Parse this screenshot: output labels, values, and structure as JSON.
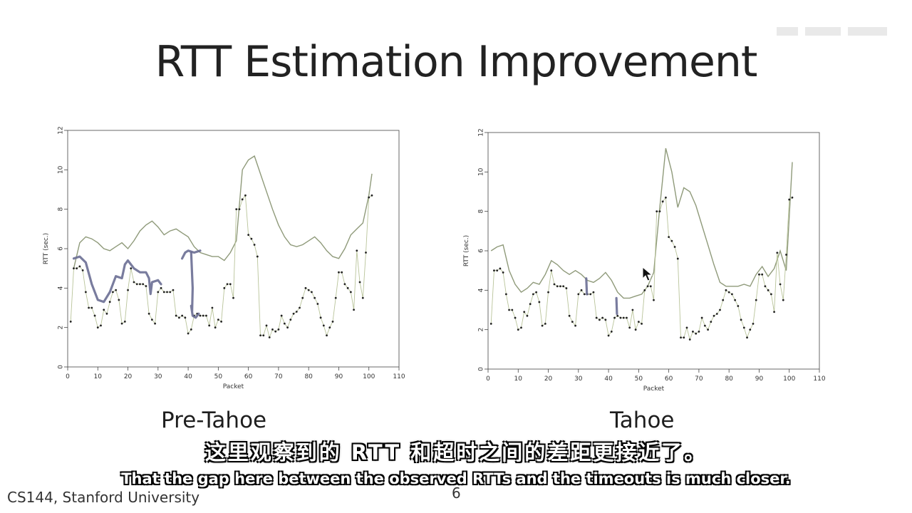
{
  "slide": {
    "title": "RTT Estimation Improvement",
    "footer": "CS144, Stanford University",
    "page_number": "6"
  },
  "subtitles": {
    "chinese": "这里观察到的 RTT 和超时之间的差距更接近了。",
    "english": "That the gap here between the observed RTTs and the timeouts is much closer."
  },
  "colors": {
    "timeout_line": "#8f9a7a",
    "rtt_line": "#b9c49a",
    "marker": "#222222",
    "annotation": "#6a6e94",
    "axis": "#444444"
  },
  "chart_data": [
    {
      "type": "line",
      "caption": "Pre-Tahoe",
      "xlabel": "Packet",
      "ylabel": "RTT (sec.)",
      "xlim": [
        0,
        110
      ],
      "ylim": [
        0,
        12
      ],
      "xticks": [
        0,
        10,
        20,
        30,
        40,
        50,
        60,
        70,
        80,
        90,
        100,
        110
      ],
      "yticks": [
        0,
        2,
        4,
        6,
        8,
        10,
        12
      ],
      "grid": false,
      "series": [
        {
          "role": "timeout",
          "x": [
            2,
            4,
            6,
            8,
            10,
            12,
            14,
            16,
            18,
            20,
            22,
            24,
            26,
            28,
            30,
            32,
            34,
            36,
            38,
            40,
            42,
            44,
            46,
            48,
            50,
            52,
            54,
            56,
            58,
            60,
            62,
            64,
            66,
            68,
            70,
            72,
            74,
            76,
            78,
            80,
            82,
            84,
            86,
            88,
            90,
            92,
            94,
            96,
            98,
            100,
            101
          ],
          "y": [
            5.0,
            6.3,
            6.6,
            6.5,
            6.3,
            6.0,
            5.9,
            6.1,
            6.3,
            6.0,
            6.4,
            6.9,
            7.2,
            7.4,
            7.1,
            6.7,
            6.9,
            7.0,
            6.8,
            6.6,
            6.1,
            5.8,
            5.7,
            5.6,
            5.6,
            5.4,
            5.8,
            6.4,
            10.0,
            10.5,
            10.7,
            9.8,
            8.9,
            8.0,
            7.2,
            6.6,
            6.2,
            6.1,
            6.2,
            6.4,
            6.6,
            6.3,
            5.9,
            5.6,
            5.5,
            6.0,
            6.7,
            7.0,
            7.3,
            8.7,
            9.8
          ]
        },
        {
          "role": "rtt",
          "x": [
            1,
            2,
            3,
            4,
            5,
            6,
            7,
            8,
            9,
            10,
            11,
            12,
            13,
            14,
            15,
            16,
            17,
            18,
            19,
            20,
            21,
            22,
            23,
            24,
            25,
            26,
            27,
            28,
            29,
            30,
            31,
            32,
            33,
            34,
            35,
            36,
            37,
            38,
            39,
            40,
            41,
            42,
            43,
            44,
            45,
            46,
            47,
            48,
            49,
            50,
            51,
            52,
            53,
            54,
            55,
            56,
            57,
            58,
            59,
            60,
            61,
            62,
            63,
            64,
            65,
            66,
            67,
            68,
            69,
            70,
            71,
            72,
            73,
            74,
            75,
            76,
            77,
            78,
            79,
            80,
            81,
            82,
            83,
            84,
            85,
            86,
            87,
            88,
            89,
            90,
            91,
            92,
            93,
            94,
            95,
            96,
            97,
            98,
            99,
            100,
            101
          ],
          "y": [
            2.3,
            5.0,
            5.0,
            5.1,
            4.9,
            3.8,
            3.0,
            3.0,
            2.6,
            2.0,
            2.1,
            2.9,
            2.7,
            3.3,
            3.8,
            3.9,
            3.4,
            2.2,
            2.3,
            3.9,
            5.0,
            4.3,
            4.2,
            4.2,
            4.2,
            4.1,
            2.7,
            2.4,
            2.2,
            3.8,
            4.0,
            3.8,
            3.8,
            3.8,
            3.9,
            2.6,
            2.5,
            2.6,
            2.5,
            1.7,
            1.9,
            2.6,
            2.7,
            2.6,
            2.6,
            2.6,
            2.1,
            3.0,
            2.0,
            2.4,
            2.3,
            4.0,
            4.2,
            4.2,
            3.5,
            8.0,
            8.0,
            8.5,
            8.7,
            6.7,
            6.5,
            6.2,
            5.6,
            1.6,
            1.6,
            2.1,
            1.5,
            1.9,
            1.8,
            1.9,
            2.6,
            2.2,
            2.0,
            2.4,
            2.7,
            2.8,
            3.0,
            3.5,
            4.0,
            3.9,
            3.8,
            3.5,
            3.2,
            2.5,
            2.1,
            1.6,
            2.0,
            2.3,
            3.5,
            4.8,
            4.8,
            4.2,
            4.0,
            3.8,
            2.9,
            5.9,
            4.3,
            3.5,
            5.8,
            8.6,
            8.7
          ]
        }
      ]
    },
    {
      "type": "line",
      "caption": "Tahoe",
      "xlabel": "Packet",
      "ylabel": "RTT (sec.)",
      "xlim": [
        0,
        110
      ],
      "ylim": [
        0,
        12
      ],
      "xticks": [
        0,
        10,
        20,
        30,
        40,
        50,
        60,
        70,
        80,
        90,
        100,
        110
      ],
      "yticks": [
        0,
        2,
        4,
        6,
        8,
        10,
        12
      ],
      "grid": false,
      "series": [
        {
          "role": "timeout",
          "x": [
            1,
            3,
            5,
            7,
            9,
            11,
            13,
            15,
            17,
            19,
            21,
            23,
            25,
            27,
            29,
            31,
            33,
            35,
            37,
            39,
            41,
            43,
            45,
            47,
            49,
            51,
            53,
            55,
            57,
            59,
            61,
            63,
            65,
            67,
            69,
            71,
            73,
            75,
            77,
            79,
            81,
            83,
            85,
            87,
            89,
            91,
            93,
            95,
            97,
            99,
            101
          ],
          "y": [
            6.0,
            6.2,
            6.3,
            5.0,
            4.3,
            3.9,
            4.1,
            4.4,
            4.3,
            4.8,
            5.5,
            5.3,
            5.0,
            4.8,
            5.0,
            4.8,
            4.5,
            4.4,
            4.6,
            4.9,
            4.5,
            3.9,
            3.6,
            3.6,
            3.7,
            3.8,
            4.2,
            4.9,
            8.2,
            11.2,
            10.0,
            8.2,
            9.2,
            9.0,
            8.3,
            7.3,
            6.3,
            5.3,
            4.4,
            4.2,
            4.2,
            4.2,
            4.3,
            4.2,
            4.8,
            5.2,
            4.7,
            5.1,
            6.0,
            5.0,
            10.5
          ]
        },
        {
          "role": "rtt",
          "x": [
            1,
            2,
            3,
            4,
            5,
            6,
            7,
            8,
            9,
            10,
            11,
            12,
            13,
            14,
            15,
            16,
            17,
            18,
            19,
            20,
            21,
            22,
            23,
            24,
            25,
            26,
            27,
            28,
            29,
            30,
            31,
            32,
            33,
            34,
            35,
            36,
            37,
            38,
            39,
            40,
            41,
            42,
            43,
            44,
            45,
            46,
            47,
            48,
            49,
            50,
            51,
            52,
            53,
            54,
            55,
            56,
            57,
            58,
            59,
            60,
            61,
            62,
            63,
            64,
            65,
            66,
            67,
            68,
            69,
            70,
            71,
            72,
            73,
            74,
            75,
            76,
            77,
            78,
            79,
            80,
            81,
            82,
            83,
            84,
            85,
            86,
            87,
            88,
            89,
            90,
            91,
            92,
            93,
            94,
            95,
            96,
            97,
            98,
            99,
            100,
            101
          ],
          "y": [
            2.3,
            5.0,
            5.0,
            5.1,
            4.9,
            3.8,
            3.0,
            3.0,
            2.6,
            2.0,
            2.1,
            2.9,
            2.7,
            3.3,
            3.8,
            3.9,
            3.4,
            2.2,
            2.3,
            3.9,
            5.0,
            4.3,
            4.2,
            4.2,
            4.2,
            4.1,
            2.7,
            2.4,
            2.2,
            3.8,
            4.0,
            3.8,
            3.8,
            3.8,
            3.9,
            2.6,
            2.5,
            2.6,
            2.5,
            1.7,
            1.9,
            2.6,
            2.7,
            2.6,
            2.6,
            2.6,
            2.1,
            3.0,
            2.0,
            2.4,
            2.3,
            4.0,
            4.2,
            4.2,
            3.5,
            8.0,
            8.0,
            8.5,
            8.7,
            6.7,
            6.5,
            6.2,
            5.6,
            1.6,
            1.6,
            2.1,
            1.5,
            1.9,
            1.8,
            1.9,
            2.6,
            2.2,
            2.0,
            2.4,
            2.7,
            2.8,
            3.0,
            3.5,
            4.0,
            3.9,
            3.8,
            3.5,
            3.2,
            2.5,
            2.1,
            1.6,
            2.0,
            2.3,
            3.5,
            4.8,
            4.8,
            4.2,
            4.0,
            3.8,
            2.9,
            5.9,
            4.3,
            3.5,
            5.8,
            8.6,
            8.7
          ]
        }
      ]
    }
  ]
}
